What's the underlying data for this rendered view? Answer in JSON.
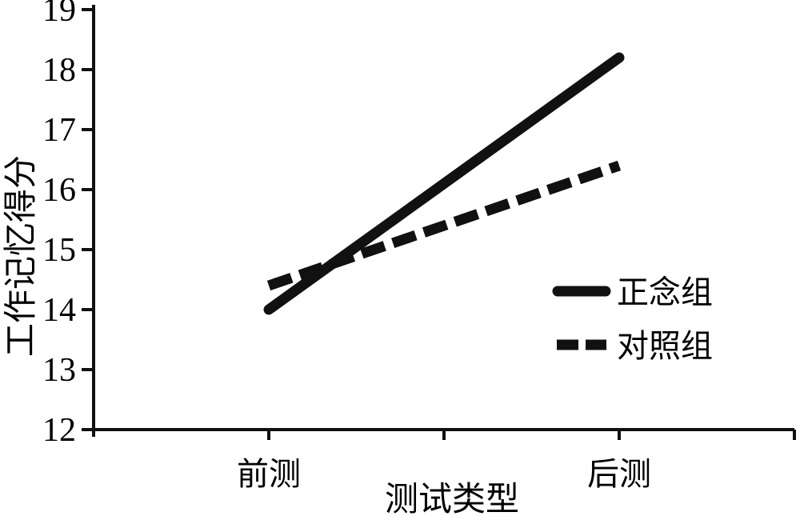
{
  "chart_data": {
    "type": "line",
    "title": "",
    "categories": [
      "前测",
      "后测"
    ],
    "series": [
      {
        "name": "正念组",
        "values": [
          14.0,
          18.2
        ],
        "line_style": "solid"
      },
      {
        "name": "对照组",
        "values": [
          14.4,
          16.4
        ],
        "line_style": "dashed"
      }
    ],
    "xlabel": "测试类型",
    "ylabel": "工作记忆得分",
    "ylim": [
      12,
      19
    ],
    "ytick_step": 1,
    "yticks": [
      12,
      13,
      14,
      15,
      16,
      17,
      18,
      19
    ],
    "grid": false,
    "legend_position": "right-middle",
    "line_color": "#111111",
    "text_color": "#000000",
    "background_color": "#ffffff"
  }
}
